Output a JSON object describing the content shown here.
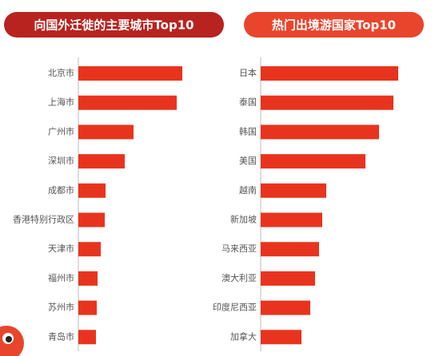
{
  "chart_data": [
    {
      "type": "bar",
      "orientation": "horizontal",
      "title": "向国外迁徙的主要城市Top10",
      "categories": [
        "北京市",
        "上海市",
        "广州市",
        "深圳市",
        "成都市",
        "香港特别行政区",
        "天津市",
        "福州市",
        "苏州市",
        "青岛市"
      ],
      "values": [
        130,
        123,
        69,
        58,
        34,
        33,
        28,
        24,
        23,
        22
      ],
      "color": "#e8341e",
      "title_color": "#b8231f"
    },
    {
      "type": "bar",
      "orientation": "horizontal",
      "title": "热门出境游国家Top10",
      "categories": [
        "日本",
        "泰国",
        "韩国",
        "美国",
        "越南",
        "新加坡",
        "马来西亚",
        "澳大利亚",
        "印度尼西亚",
        "加拿大"
      ],
      "values": [
        172,
        166,
        148,
        131,
        82,
        77,
        73,
        68,
        62,
        51
      ],
      "color": "#e8341e",
      "title_color": "#e8452c"
    }
  ]
}
